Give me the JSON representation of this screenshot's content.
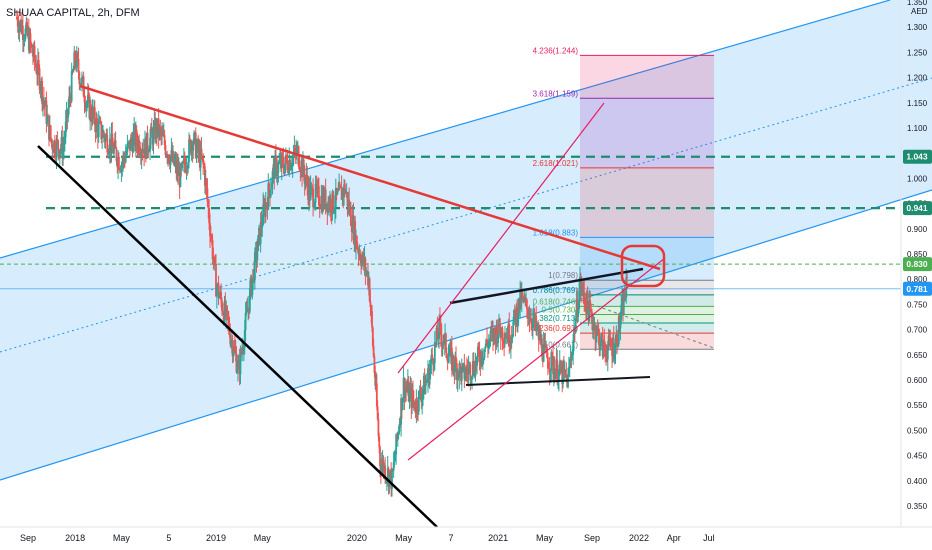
{
  "header": {
    "title": "SHUAA CAPITAL, 2h, DFM"
  },
  "chart_data": {
    "type": "line",
    "title": "SHUAA CAPITAL, 2h, DFM",
    "currency": "AED",
    "ylim": [
      0.3,
      1.36
    ],
    "y_ticks": [
      0.35,
      0.4,
      0.45,
      0.5,
      0.55,
      0.6,
      0.65,
      0.7,
      0.75,
      0.8,
      0.85,
      0.9,
      0.95,
      1.0,
      1.05,
      1.1,
      1.15,
      1.2,
      1.25,
      1.3,
      1.35
    ],
    "y_tick_labels": [
      "0.350",
      "0.400",
      "0.450",
      "0.500",
      "0.550",
      "0.600",
      "0.650",
      "0.700",
      "0.750",
      "0.800",
      "0.850",
      "0.900",
      "0.950",
      "1.000",
      "1.050",
      "1.100",
      "1.150",
      "1.200",
      "1.250",
      "1.300",
      "1.350"
    ],
    "x_ticks": [
      {
        "label": "Sep",
        "date": "2017-09"
      },
      {
        "label": "2018",
        "date": "2018-01"
      },
      {
        "label": "May",
        "date": "2018-05"
      },
      {
        "label": "5",
        "date": "2018-09"
      },
      {
        "label": "2019",
        "date": "2019-01"
      },
      {
        "label": "May",
        "date": "2019-05"
      },
      {
        "label": "2020",
        "date": "2020-01"
      },
      {
        "label": "May",
        "date": "2020-05"
      },
      {
        "label": "7",
        "date": "2020-09"
      },
      {
        "label": "2021",
        "date": "2021-01"
      },
      {
        "label": "May",
        "date": "2021-05"
      },
      {
        "label": "Sep",
        "date": "2021-09"
      },
      {
        "label": "2022",
        "date": "2022-01"
      },
      {
        "label": "Apr",
        "date": "2022-04"
      },
      {
        "label": "Jul",
        "date": "2022-07"
      }
    ],
    "price_path": [
      [
        "2017-08",
        1.32
      ],
      [
        "2017-09",
        1.28
      ],
      [
        "2017-10",
        1.2
      ],
      [
        "2017-11",
        1.07
      ],
      [
        "2017-12",
        1.06
      ],
      [
        "2018-01",
        1.24
      ],
      [
        "2018-02",
        1.15
      ],
      [
        "2018-03",
        1.1
      ],
      [
        "2018-04",
        1.07
      ],
      [
        "2018-05",
        1.03
      ],
      [
        "2018-06",
        1.08
      ],
      [
        "2018-07",
        1.06
      ],
      [
        "2018-08",
        1.1
      ],
      [
        "2018-09",
        1.05
      ],
      [
        "2018-10",
        1.0
      ],
      [
        "2018-11",
        1.08
      ],
      [
        "2018-12",
        1.02
      ],
      [
        "2019-01",
        0.79
      ],
      [
        "2019-02",
        0.71
      ],
      [
        "2019-03",
        0.62
      ],
      [
        "2019-04",
        0.78
      ],
      [
        "2019-05",
        0.92
      ],
      [
        "2019-06",
        1.02
      ],
      [
        "2019-07",
        1.03
      ],
      [
        "2019-08",
        1.05
      ],
      [
        "2019-09",
        0.97
      ],
      [
        "2019-10",
        0.96
      ],
      [
        "2019-11",
        0.95
      ],
      [
        "2019-12",
        0.98
      ],
      [
        "2020-01",
        0.87
      ],
      [
        "2020-02",
        0.8
      ],
      [
        "2020-03",
        0.44
      ],
      [
        "2020-04",
        0.4
      ],
      [
        "2020-05",
        0.59
      ],
      [
        "2020-06",
        0.55
      ],
      [
        "2020-07",
        0.6
      ],
      [
        "2020-08",
        0.7
      ],
      [
        "2020-09",
        0.64
      ],
      [
        "2020-10",
        0.61
      ],
      [
        "2020-11",
        0.63
      ],
      [
        "2020-12",
        0.67
      ],
      [
        "2021-01",
        0.7
      ],
      [
        "2021-02",
        0.69
      ],
      [
        "2021-03",
        0.76
      ],
      [
        "2021-04",
        0.72
      ],
      [
        "2021-05",
        0.65
      ],
      [
        "2021-06",
        0.62
      ],
      [
        "2021-07",
        0.6
      ],
      [
        "2021-08",
        0.79
      ],
      [
        "2021-09",
        0.72
      ],
      [
        "2021-10",
        0.66
      ],
      [
        "2021-11",
        0.67
      ],
      [
        "2021-12",
        0.79
      ]
    ],
    "horizontal_levels": [
      {
        "value": 1.043,
        "label": "1.043",
        "color": "#1e8c6e",
        "style": "dashed"
      },
      {
        "value": 0.941,
        "label": "0.941",
        "color": "#1e8c6e",
        "style": "dashed"
      },
      {
        "value": 0.83,
        "label": "0.830",
        "color": "#4caf50",
        "style": "dotted"
      },
      {
        "value": 0.781,
        "label": "0.781",
        "color": "#2196f3",
        "style": "price"
      }
    ],
    "fib_extension": [
      {
        "label": "4.236(1.244)",
        "value": 1.244,
        "color": "#e91e63"
      },
      {
        "label": "3.618(1.159)",
        "value": 1.159,
        "color": "#9c27b0"
      },
      {
        "label": "2.618(1.021)",
        "value": 1.021,
        "color": "#e53935"
      },
      {
        "label": "1.618(0.883)",
        "value": 0.883,
        "color": "#2196f3"
      },
      {
        "label": "1(0.798)",
        "value": 0.798,
        "color": "#787b86"
      },
      {
        "label": "0.786(0.769)",
        "value": 0.769,
        "color": "#00897b"
      },
      {
        "label": "0.618(0.746)",
        "value": 0.746,
        "color": "#4caf50"
      },
      {
        "label": "0.5(0.730)",
        "value": 0.73,
        "color": "#4caf50"
      },
      {
        "label": "0.382(0.713)",
        "value": 0.713,
        "color": "#009688"
      },
      {
        "label": "0.236(0.693)",
        "value": 0.693,
        "color": "#e53935"
      },
      {
        "label": "0(0.661)",
        "value": 0.661,
        "color": "#787b86"
      }
    ],
    "colors": {
      "up": "#26a69a",
      "down": "#ef5350",
      "channel": "#2196f3",
      "resistance": "#e53935",
      "support": "#000000"
    },
    "grid": false
  }
}
